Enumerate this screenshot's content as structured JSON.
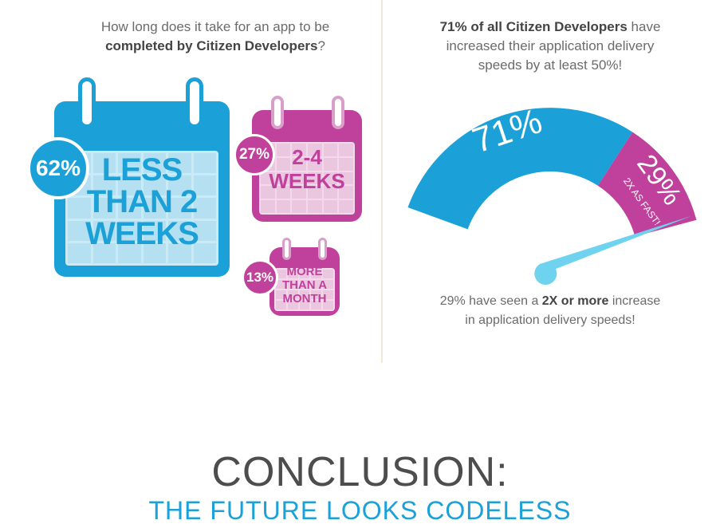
{
  "left_panel": {
    "question_line1": "How long does it take for an app to be",
    "question_line2": "completed by Citizen Developers",
    "question_end": "?",
    "calendars": [
      {
        "percent": "62%",
        "label_lines": [
          "LESS",
          "THAN 2",
          "WEEKS"
        ],
        "color": "#1ba0d8"
      },
      {
        "percent": "27%",
        "label_lines": [
          "2-4",
          "WEEKS"
        ],
        "color": "#c0419b"
      },
      {
        "percent": "13%",
        "label_lines": [
          "MORE",
          "THAN A",
          "MONTH"
        ],
        "color": "#c0419b"
      }
    ]
  },
  "right_panel": {
    "stat_bold": "71% of all Citizen Developers",
    "stat_rest1": " have",
    "stat_line2": "increased their application delivery",
    "stat_line3": "speeds by at least 50%!",
    "gauge_left_label": "71%",
    "gauge_right_label": "29%",
    "gauge_right_sub": "2X AS FAST!",
    "footer_pre": "29% have seen a ",
    "footer_bold": "2X or more",
    "footer_post": " increase",
    "footer_line2": "in application delivery speeds!"
  },
  "conclusion": {
    "title": "CONCLUSION:",
    "subtitle": "THE FUTURE LOOKS CODELESS"
  },
  "colors": {
    "blue": "#1ba0d8",
    "magenta": "#c0419b",
    "needle": "#6fd3ef"
  },
  "chart_data": [
    {
      "type": "table",
      "title": "How long does it take for an app to be completed by Citizen Developers?",
      "categories": [
        "LESS THAN 2 WEEKS",
        "2-4 WEEKS",
        "MORE THAN A MONTH"
      ],
      "values": [
        62,
        27,
        13
      ]
    },
    {
      "type": "pie",
      "title": "71% of all Citizen Developers have increased their application delivery speeds by at least 50%!",
      "categories": [
        "71%",
        "29%"
      ],
      "values": [
        71,
        29
      ]
    }
  ]
}
